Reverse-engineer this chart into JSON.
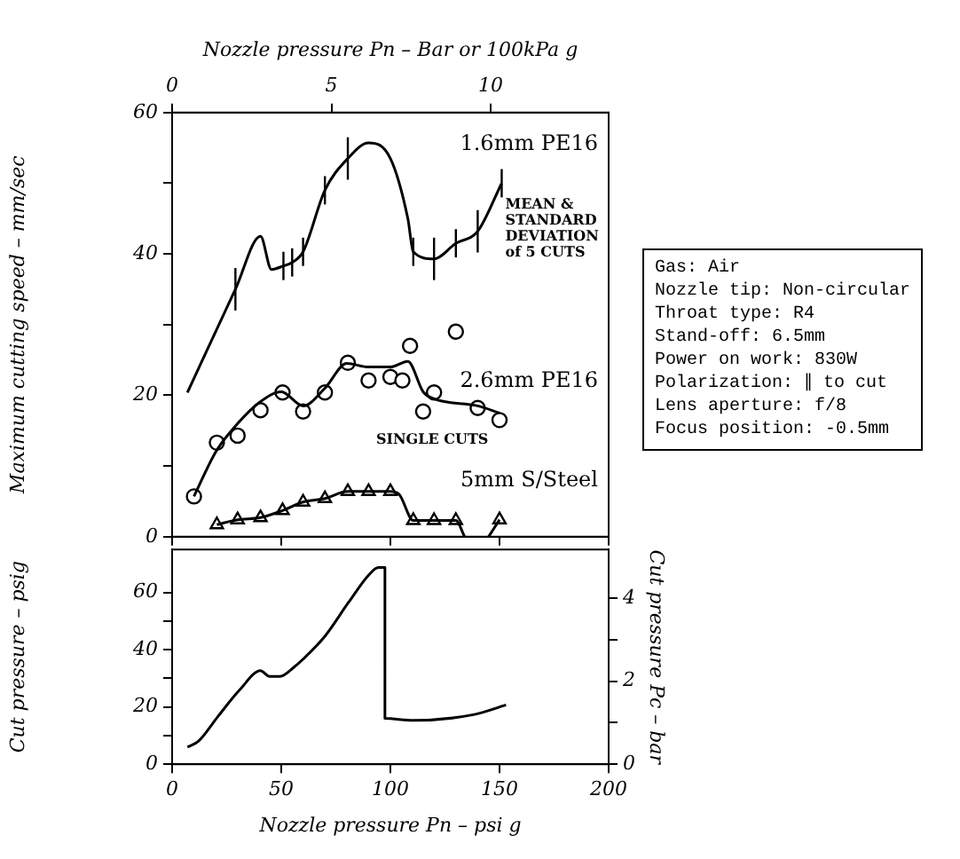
{
  "chart_data": [
    {
      "type": "line",
      "x2label": "Nozzle pressure Pn – Bar or 100kPa g",
      "ylabel": "Maximum cutting speed – mm/sec",
      "xlim": [
        0,
        200
      ],
      "xticks": [
        0,
        50,
        100,
        150,
        200
      ],
      "tick_labels": "y",
      "x2lim": [
        0,
        13.7
      ],
      "x2ticks": [
        0,
        5,
        10
      ],
      "ylim": [
        0,
        60
      ],
      "yticks": [
        0,
        {
          "value": 10,
          "label": null
        },
        20,
        {
          "value": 30,
          "label": null
        },
        40,
        {
          "value": 50,
          "label": null
        },
        60
      ],
      "grid": false,
      "legend": false,
      "marker": "none",
      "line_style": "solid",
      "annotations": [
        {
          "text": "MEAN &\nSTANDARD\nDEVIATION\nof 5 CUTS",
          "x": 151,
          "y": 50
        },
        {
          "text": "SINGLE CUTS",
          "x": 140,
          "y": 18.2
        },
        "Gas: Air",
        "Nozzle tip: Non-circular",
        "Throat type: R4",
        "Stand-off: 6.5mm",
        "Power on work: 830W",
        "Polarization: ∥ to cut",
        "Lens aperture: f/8",
        "Focus position: -0.5mm"
      ],
      "series": [
        {
          "name": "1.6mm PE16",
          "type": "line",
          "color": "#000000",
          "x": [
            7,
            29,
            40.5,
            45.5,
            51,
            55,
            60,
            70,
            80.5,
            90,
            100,
            108,
            110.5,
            120,
            130,
            140,
            151
          ],
          "values": [
            20.4,
            35,
            42.5,
            37.8,
            38.3,
            38.8,
            40.3,
            49,
            53.5,
            55.7,
            53.5,
            45,
            40.3,
            39.3,
            41.5,
            43.2,
            50
          ],
          "errors": [
            null,
            3,
            null,
            null,
            2,
            2,
            2,
            2,
            3,
            null,
            null,
            null,
            2,
            3,
            2,
            3,
            2
          ]
        },
        {
          "type": "line",
          "color": "#000000",
          "x": [
            10,
            20,
            30,
            40,
            50,
            60,
            70,
            80,
            90,
            100,
            108,
            115,
            120,
            140,
            150
          ],
          "values": [
            5.7,
            12,
            16,
            19,
            20.5,
            18.5,
            21,
            24.5,
            24,
            24,
            24.8,
            20.5,
            19.5,
            18.5,
            17.5
          ]
        },
        {
          "name": "2.6mm PE16",
          "type": "scatter",
          "marker": "circle",
          "color": "#000000",
          "x": [
            10,
            20.5,
            30,
            40.5,
            50.6,
            60,
            70,
            80.5,
            90,
            100,
            105.5,
            109,
            115,
            120,
            130,
            140,
            150
          ],
          "values": [
            5.7,
            13.3,
            14.3,
            17.9,
            20.4,
            17.7,
            20.4,
            24.6,
            22.1,
            22.6,
            22.1,
            27,
            17.7,
            20.4,
            29,
            18.2,
            16.5
          ]
        },
        {
          "type": "line",
          "color": "#000000",
          "x": [
            20.5,
            30,
            40.5,
            50.6,
            60,
            70,
            80.5,
            90,
            100,
            104,
            110.5,
            120,
            130,
            134,
            null,
            145,
            150
          ],
          "values": [
            1.7,
            2.4,
            2.7,
            3.7,
            4.9,
            5.4,
            6.4,
            6.4,
            6.4,
            6,
            2.3,
            2.3,
            2.3,
            0,
            null,
            0,
            2.4
          ]
        },
        {
          "name": "5mm S/Steel",
          "type": "scatter",
          "marker": "triangle",
          "color": "#000000",
          "x": [
            20.5,
            30,
            40.5,
            50.6,
            60,
            70,
            80.5,
            90,
            100,
            110.5,
            120,
            130,
            150
          ],
          "values": [
            1.7,
            2.4,
            2.7,
            3.7,
            4.9,
            5.4,
            6.4,
            6.4,
            6.4,
            2.3,
            2.3,
            2.3,
            2.4
          ]
        }
      ]
    },
    {
      "type": "line",
      "xlabel": "Nozzle pressure Pn – psi g",
      "ylabel": "Cut pressure – psig",
      "y2label": "Cut pressure Pc – bar",
      "xlim": [
        0,
        200
      ],
      "xticks": [
        0,
        50,
        100,
        150,
        200
      ],
      "ylim": [
        0,
        75
      ],
      "yticks": [
        0,
        {
          "value": 10,
          "label": null
        },
        20,
        {
          "value": 30,
          "label": null
        },
        40,
        {
          "value": 50,
          "label": null
        },
        60
      ],
      "y2lim": [
        0,
        5.17
      ],
      "y2ticks": [
        0,
        {
          "value": 1,
          "label": null
        },
        2,
        {
          "value": 3,
          "label": null
        },
        4
      ],
      "grid": false,
      "legend": false,
      "marker": "none",
      "line_style": "solid",
      "series": [
        {
          "color": "#000000",
          "x": [
            7,
            12,
            21,
            31,
            40.5,
            44.5,
            49.5,
            56,
            60,
            70,
            81,
            90,
            94.5,
            97.5,
            97.5,
            110.5,
            138,
            153
          ],
          "values": [
            6,
            8,
            16.7,
            26,
            32.7,
            30.7,
            30.7,
            34,
            36.7,
            44.7,
            56.7,
            66,
            68.7,
            68.7,
            16,
            15.3,
            17.3,
            20.7
          ]
        }
      ]
    }
  ]
}
